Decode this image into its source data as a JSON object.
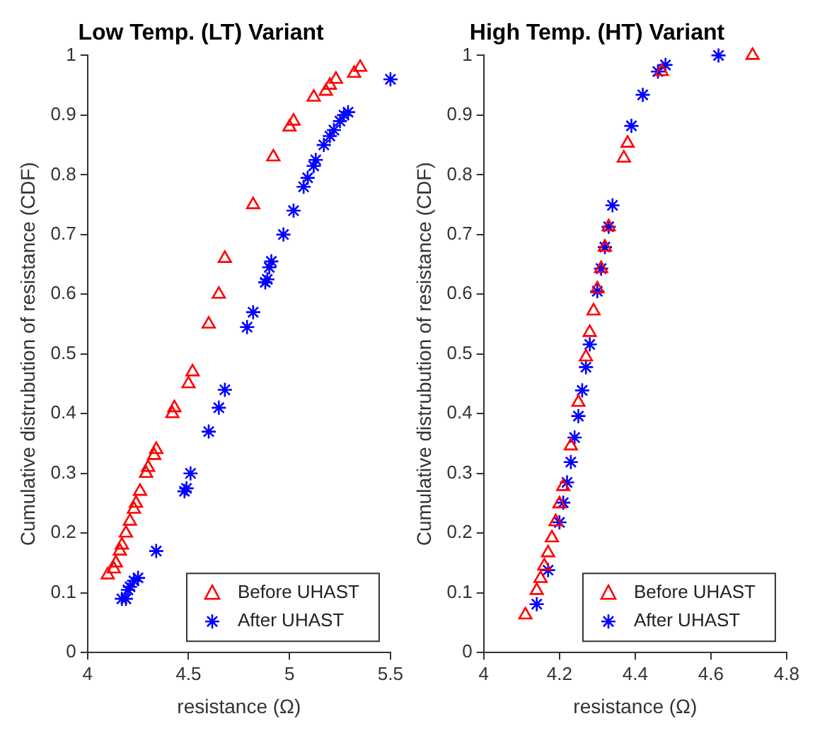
{
  "chart_data": [
    {
      "type": "scatter",
      "title": "Low Temp. (LT) Variant",
      "xlabel": "resistance (Ω)",
      "ylabel": "Cumulative distrubution of resistance (CDF)",
      "xlim": [
        4,
        5.5
      ],
      "xticks": [
        4,
        4.5,
        5,
        5.5
      ],
      "ylim": [
        0,
        1
      ],
      "yticks": [
        0,
        0.1,
        0.2,
        0.3,
        0.4,
        0.5,
        0.6,
        0.7,
        0.8,
        0.9,
        1
      ],
      "grid": false,
      "legend": "bottom right",
      "series": [
        {
          "name": "Before UHAST",
          "color": "#ff0000",
          "marker": "triangle",
          "x": [
            4.1,
            4.13,
            4.14,
            4.16,
            4.17,
            4.19,
            4.21,
            4.23,
            4.24,
            4.26,
            4.29,
            4.3,
            4.33,
            4.34,
            4.42,
            4.43,
            4.5,
            4.52,
            4.6,
            4.65,
            4.68,
            4.82,
            4.92,
            5.0,
            5.02,
            5.12,
            5.18,
            5.2,
            5.23,
            5.32,
            5.35
          ],
          "values": [
            0.13,
            0.14,
            0.15,
            0.17,
            0.18,
            0.2,
            0.22,
            0.24,
            0.25,
            0.27,
            0.3,
            0.31,
            0.33,
            0.34,
            0.4,
            0.41,
            0.45,
            0.47,
            0.55,
            0.6,
            0.66,
            0.75,
            0.83,
            0.88,
            0.89,
            0.93,
            0.94,
            0.95,
            0.96,
            0.97,
            0.98
          ]
        },
        {
          "name": "After UHAST",
          "color": "#0000ff",
          "marker": "cross",
          "x": [
            4.17,
            4.19,
            4.2,
            4.21,
            4.23,
            4.25,
            4.34,
            4.48,
            4.49,
            4.51,
            4.6,
            4.65,
            4.68,
            4.79,
            4.82,
            4.88,
            4.89,
            4.9,
            4.91,
            4.97,
            5.02,
            5.07,
            5.09,
            5.12,
            5.13,
            5.17,
            5.2,
            5.22,
            5.25,
            5.27,
            5.29,
            5.5
          ],
          "values": [
            0.09,
            0.09,
            0.105,
            0.11,
            0.12,
            0.125,
            0.17,
            0.27,
            0.275,
            0.3,
            0.37,
            0.41,
            0.44,
            0.545,
            0.57,
            0.62,
            0.625,
            0.645,
            0.655,
            0.7,
            0.74,
            0.78,
            0.795,
            0.815,
            0.825,
            0.85,
            0.865,
            0.875,
            0.89,
            0.9,
            0.905,
            0.96
          ]
        }
      ]
    },
    {
      "type": "scatter",
      "title": "High Temp. (HT) Variant",
      "xlabel": "resistance (Ω)",
      "ylabel": "Cumulative distrubution of resistance (CDF)",
      "xlim": [
        4,
        4.8
      ],
      "xticks": [
        4,
        4.2,
        4.4,
        4.6,
        4.8
      ],
      "ylim": [
        0,
        1
      ],
      "yticks": [
        0,
        0.1,
        0.2,
        0.3,
        0.4,
        0.5,
        0.6,
        0.7,
        0.8,
        0.9,
        1
      ],
      "grid": false,
      "legend": "bottom right",
      "series": [
        {
          "name": "Before UHAST",
          "color": "#ff0000",
          "marker": "triangle",
          "x": [
            4.11,
            4.14,
            4.15,
            4.16,
            4.17,
            4.18,
            4.19,
            4.2,
            4.21,
            4.23,
            4.25,
            4.27,
            4.28,
            4.29,
            4.3,
            4.31,
            4.32,
            4.33,
            4.37,
            4.38,
            4.47,
            4.71
          ],
          "values": [
            0.063,
            0.104,
            0.124,
            0.145,
            0.167,
            0.192,
            0.219,
            0.249,
            0.278,
            0.346,
            0.419,
            0.495,
            0.536,
            0.572,
            0.609,
            0.643,
            0.679,
            0.713,
            0.828,
            0.853,
            0.973,
            1.0
          ]
        },
        {
          "name": "After UHAST",
          "color": "#0000ff",
          "marker": "cross",
          "x": [
            4.14,
            4.17,
            4.2,
            4.21,
            4.22,
            4.23,
            4.24,
            4.25,
            4.26,
            4.27,
            4.28,
            4.3,
            4.31,
            4.32,
            4.33,
            4.34,
            4.39,
            4.42,
            4.46,
            4.48,
            4.62
          ],
          "values": [
            0.081,
            0.138,
            0.218,
            0.251,
            0.285,
            0.319,
            0.36,
            0.396,
            0.439,
            0.478,
            0.516,
            0.605,
            0.643,
            0.679,
            0.713,
            0.749,
            0.882,
            0.934,
            0.973,
            0.984,
            1.0
          ]
        }
      ]
    }
  ]
}
